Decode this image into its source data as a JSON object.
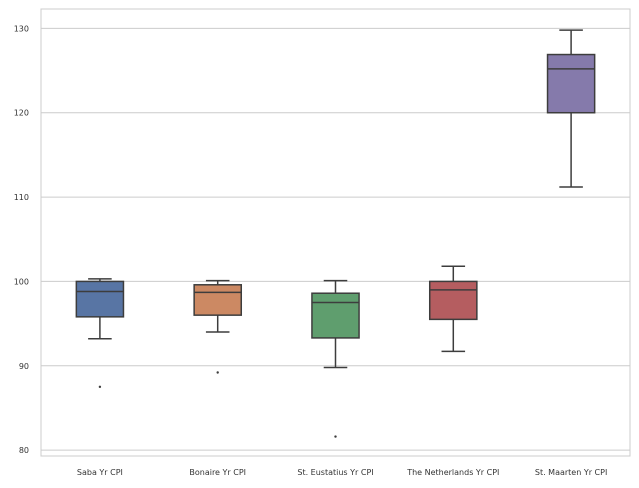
{
  "chart_data": {
    "type": "box",
    "title": "",
    "xlabel": "",
    "ylabel": "",
    "ylim": [
      79.3,
      132.3
    ],
    "yticks": [
      80,
      90,
      100,
      110,
      120,
      130
    ],
    "grid": "horizontal",
    "categories": [
      "Saba Yr CPI",
      "Bonaire Yr CPI",
      "St. Eustatius  Yr CPI",
      "The Netherlands Yr CPI",
      "St. Maarten Yr CPI"
    ],
    "boxes": [
      {
        "name": "Saba Yr CPI",
        "color": "#5875a4",
        "whisker_low": 93.2,
        "q1": 95.8,
        "median": 98.8,
        "q3": 100.0,
        "whisker_high": 100.3,
        "outliers": [
          87.5
        ]
      },
      {
        "name": "Bonaire Yr CPI",
        "color": "#cc8963",
        "whisker_low": 94.0,
        "q1": 96.0,
        "median": 98.7,
        "q3": 99.6,
        "whisker_high": 100.1,
        "outliers": [
          89.2
        ]
      },
      {
        "name": "St. Eustatius  Yr CPI",
        "color": "#5f9e6e",
        "whisker_low": 89.8,
        "q1": 93.3,
        "median": 97.5,
        "q3": 98.6,
        "whisker_high": 100.1,
        "outliers": [
          81.6
        ]
      },
      {
        "name": "The Netherlands Yr CPI",
        "color": "#b55d60",
        "whisker_low": 91.7,
        "q1": 95.5,
        "median": 99.0,
        "q3": 100.0,
        "whisker_high": 101.8,
        "outliers": []
      },
      {
        "name": "St. Maarten Yr CPI",
        "color": "#857aab",
        "whisker_low": 111.2,
        "q1": 120.0,
        "median": 125.2,
        "q3": 126.9,
        "whisker_high": 129.8,
        "outliers": []
      }
    ]
  }
}
